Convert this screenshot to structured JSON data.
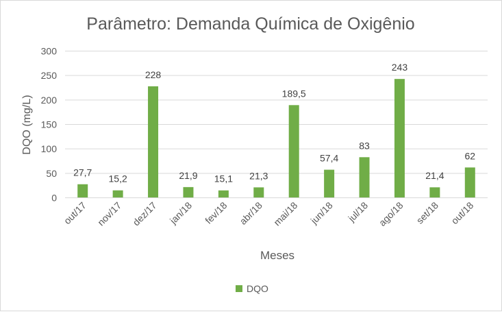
{
  "chart_data": {
    "type": "bar",
    "title": "Parâmetro: Demanda Química de Oxigênio",
    "xlabel": "Meses",
    "ylabel": "DQO (mg/L)",
    "ylim": [
      0,
      300
    ],
    "yticks": [
      0,
      50,
      100,
      150,
      200,
      250,
      300
    ],
    "grid": true,
    "legend_position": "bottom",
    "categories": [
      "out/17",
      "nov/17",
      "dez/17",
      "jan/18",
      "fev/18",
      "abr/18",
      "mai/18",
      "jun/18",
      "jul/18",
      "ago/18",
      "set/18",
      "out/18"
    ],
    "series": [
      {
        "name": "DQO",
        "color": "#70ad47",
        "values": [
          27.7,
          15.2,
          228,
          21.9,
          15.1,
          21.3,
          189.5,
          57.4,
          83,
          243,
          21.4,
          62
        ],
        "labels": [
          "27,7",
          "15,2",
          "228",
          "21,9",
          "15,1",
          "21,3",
          "189,5",
          "57,4",
          "83",
          "243",
          "21,4",
          "62"
        ]
      }
    ]
  }
}
